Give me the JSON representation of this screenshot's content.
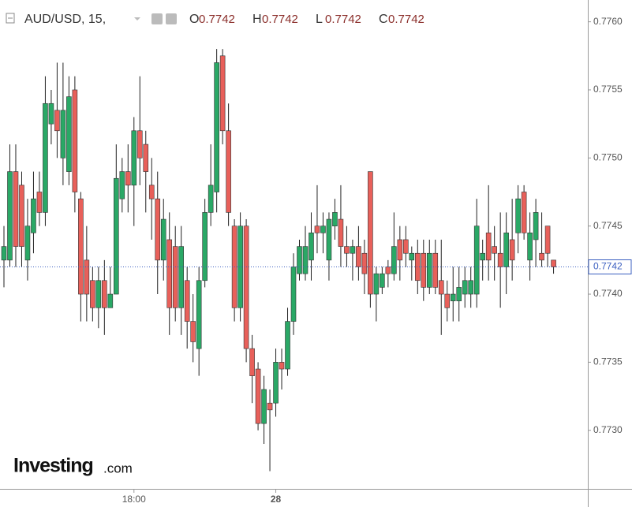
{
  "chart_data": {
    "type": "candlestick",
    "header": {
      "symbol": "AUD/USD, 15,",
      "fields": [
        {
          "name": "O",
          "value": 0.7742
        },
        {
          "name": "H",
          "value": 0.7742
        },
        {
          "name": "L",
          "value": 0.7742
        },
        {
          "name": "C",
          "value": 0.7742
        }
      ]
    },
    "last_price": 0.7742,
    "watermark": {
      "brand": "Investing",
      "suffix": ".com"
    },
    "up_color": "#2aa866",
    "down_color": "#e8605a",
    "ylim": [
      0.77257,
      0.77616
    ],
    "yticks": [
      {
        "value": 0.773,
        "label": "0.7730"
      },
      {
        "value": 0.7735,
        "label": "0.7735"
      },
      {
        "value": 0.774,
        "label": "0.7740"
      },
      {
        "value": 0.7745,
        "label": "0.7745"
      },
      {
        "value": 0.775,
        "label": "0.7750"
      },
      {
        "value": 0.7755,
        "label": "0.7755"
      },
      {
        "value": 0.776,
        "label": "0.7760"
      }
    ],
    "categories": [
      null,
      null,
      null,
      null,
      null,
      null,
      null,
      null,
      null,
      null,
      null,
      null,
      null,
      null,
      null,
      null,
      null,
      null,
      null,
      null,
      null,
      null,
      "18:00",
      null,
      null,
      null,
      null,
      null,
      null,
      null,
      null,
      null,
      null,
      null,
      null,
      null,
      null,
      null,
      null,
      null,
      null,
      null,
      null,
      null,
      null,
      null,
      "28",
      null,
      null,
      null,
      null,
      null,
      null,
      null,
      null,
      null,
      null,
      null,
      null,
      null,
      null,
      null,
      null,
      null,
      null,
      null,
      null,
      null,
      null,
      null,
      null,
      null,
      null,
      null,
      null,
      null,
      null,
      null,
      null,
      null,
      null,
      null,
      null,
      null,
      null,
      null,
      null,
      null,
      null,
      null,
      null,
      null,
      null,
      null
    ],
    "open": [
      0.77425,
      0.77425,
      0.7749,
      0.7748,
      0.77425,
      0.77445,
      0.77475,
      0.7746,
      0.77525,
      0.77535,
      0.775,
      0.7749,
      0.7755,
      0.7747,
      0.77425,
      0.7741,
      0.7739,
      0.7741,
      0.7739,
      0.774,
      0.7747,
      0.7749,
      0.7748,
      0.7752,
      0.7751,
      0.7748,
      0.7747,
      0.77425,
      0.7744,
      0.77435,
      0.7739,
      0.7741,
      0.7738,
      0.7736,
      0.7741,
      0.7746,
      0.77475,
      0.77575,
      0.7752,
      0.7745,
      0.7739,
      0.7745,
      0.7736,
      0.77345,
      0.77305,
      0.7732,
      0.7732,
      0.7735,
      0.77345,
      0.7738,
      0.77415,
      0.77415,
      0.77425,
      0.7745,
      0.77445,
      0.77425,
      0.7745,
      0.77455,
      0.77435,
      0.7743,
      0.77435,
      0.7743,
      0.7749,
      0.774,
      0.77405,
      0.7742,
      0.77415,
      0.7744,
      0.7744,
      0.77425,
      0.7743,
      0.7743,
      0.77405,
      0.7743,
      0.7741,
      0.774,
      0.77395,
      0.77395,
      0.774,
      0.774,
      0.774,
      0.77425,
      0.77445,
      0.77435,
      0.7743,
      0.7742,
      0.7744,
      0.77445,
      0.77475,
      0.77425,
      0.7744,
      0.7743,
      0.7745,
      0.77425
    ],
    "high": [
      0.7745,
      0.7751,
      0.7751,
      0.7749,
      0.7747,
      0.7749,
      0.7749,
      0.7756,
      0.7755,
      0.7757,
      0.7757,
      0.7756,
      0.7756,
      0.77475,
      0.7745,
      0.7742,
      0.7742,
      0.77425,
      0.7742,
      0.7751,
      0.775,
      0.7751,
      0.7753,
      0.7756,
      0.7752,
      0.775,
      0.7749,
      0.7747,
      0.7746,
      0.7745,
      0.7745,
      0.7742,
      0.774,
      0.7742,
      0.7747,
      0.7751,
      0.7758,
      0.7758,
      0.7754,
      0.77455,
      0.7746,
      0.77455,
      0.7737,
      0.7735,
      0.7734,
      0.7733,
      0.7736,
      0.7736,
      0.7739,
      0.7743,
      0.7744,
      0.7745,
      0.7746,
      0.7748,
      0.7746,
      0.7746,
      0.7747,
      0.7748,
      0.7745,
      0.7744,
      0.7745,
      0.7744,
      0.7749,
      0.7742,
      0.7742,
      0.77425,
      0.7746,
      0.7745,
      0.7745,
      0.77435,
      0.7744,
      0.7744,
      0.7744,
      0.7744,
      0.7744,
      0.7741,
      0.7742,
      0.7742,
      0.7742,
      0.7742,
      0.7747,
      0.7744,
      0.7748,
      0.7745,
      0.7746,
      0.7746,
      0.7747,
      0.7748,
      0.7748,
      0.7746,
      0.7747,
      0.7746,
      0.7745,
      0.77425
    ],
    "low": [
      0.77405,
      0.7742,
      0.7742,
      0.7742,
      0.7741,
      0.7743,
      0.7745,
      0.7745,
      0.7751,
      0.775,
      0.7748,
      0.7748,
      0.7746,
      0.7738,
      0.7738,
      0.7738,
      0.77375,
      0.7737,
      0.7739,
      0.774,
      0.7746,
      0.7746,
      0.7745,
      0.7748,
      0.7746,
      0.7744,
      0.774,
      0.7741,
      0.7737,
      0.7738,
      0.7737,
      0.7736,
      0.7735,
      0.7734,
      0.77405,
      0.7745,
      0.7746,
      0.7751,
      0.7745,
      0.7738,
      0.7738,
      0.7735,
      0.7732,
      0.773,
      0.7729,
      0.7727,
      0.7731,
      0.7733,
      0.7734,
      0.7737,
      0.7741,
      0.7741,
      0.7741,
      0.7743,
      0.7743,
      0.7741,
      0.7744,
      0.7742,
      0.7742,
      0.7741,
      0.7741,
      0.774,
      0.7739,
      0.7738,
      0.774,
      0.77405,
      0.7741,
      0.7741,
      0.7742,
      0.7741,
      0.774,
      0.77395,
      0.774,
      0.774,
      0.7737,
      0.7738,
      0.7738,
      0.7738,
      0.7739,
      0.7739,
      0.7739,
      0.7741,
      0.7741,
      0.7741,
      0.7739,
      0.774,
      0.7741,
      0.7743,
      0.7744,
      0.7741,
      0.7742,
      0.7742,
      0.7742,
      0.77415
    ],
    "close": [
      0.77435,
      0.7749,
      0.77435,
      0.77435,
      0.7745,
      0.7747,
      0.7746,
      0.7754,
      0.7754,
      0.7752,
      0.77535,
      0.77545,
      0.77475,
      0.774,
      0.774,
      0.7739,
      0.7741,
      0.7739,
      0.774,
      0.77485,
      0.7749,
      0.7748,
      0.7752,
      0.775,
      0.7749,
      0.7747,
      0.77425,
      0.77455,
      0.7739,
      0.7739,
      0.77435,
      0.7738,
      0.77365,
      0.7741,
      0.7746,
      0.7748,
      0.7757,
      0.7752,
      0.7746,
      0.7739,
      0.7745,
      0.7736,
      0.7734,
      0.77305,
      0.7733,
      0.77315,
      0.7735,
      0.77345,
      0.7738,
      0.7742,
      0.77435,
      0.77435,
      0.77445,
      0.77445,
      0.7745,
      0.77455,
      0.7746,
      0.77435,
      0.7743,
      0.77435,
      0.7742,
      0.77415,
      0.774,
      0.77415,
      0.77415,
      0.77415,
      0.77435,
      0.77425,
      0.7743,
      0.7743,
      0.7741,
      0.77405,
      0.7743,
      0.77405,
      0.774,
      0.7739,
      0.774,
      0.77405,
      0.7741,
      0.7741,
      0.7745,
      0.7743,
      0.77425,
      0.7743,
      0.7742,
      0.77445,
      0.77425,
      0.7747,
      0.77445,
      0.77445,
      0.7746,
      0.77425,
      0.7743,
      0.7742
    ]
  }
}
